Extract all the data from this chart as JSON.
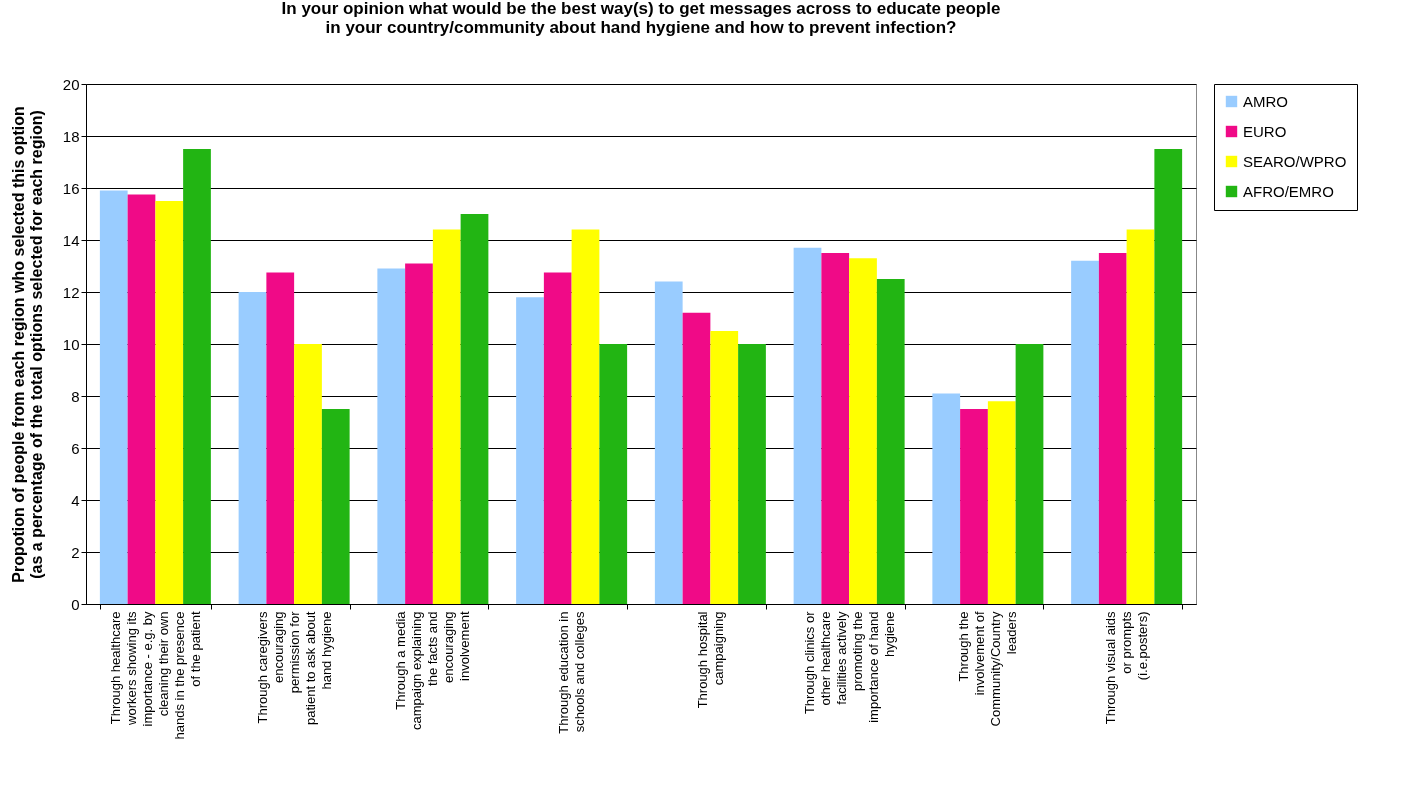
{
  "chart_data": {
    "type": "bar",
    "title": [
      "In your opinion what would be the best way(s) to get messages across to educate people",
      "in your country/community about hand hygiene and how to prevent infection?"
    ],
    "ylabel": [
      "Propotion of people from each region who selected this option",
      "(as a percentage of the total options selected for each region)"
    ],
    "categories": [
      "Through healthcare workers showing its importance - e.g. by cleaning their own hands in the presence of the patient",
      "Through caregivers encouraging permission for patient to ask about hand hygiene",
      "Through a media campaign explaining the facts and encouraging involvement",
      "Through education in schools and colleges",
      "Through hospital campaigning",
      "Through clinics or other healthcare facilities actively promoting the importance of hand hygiene",
      "Through the involvement of Community/Country leaders",
      "Through visual aids or prompts (i.e.posters)"
    ],
    "series": [
      {
        "name": "AMRO",
        "color": "#99ccff",
        "values": [
          15.9,
          12.0,
          12.9,
          11.8,
          12.4,
          13.7,
          8.1,
          13.2
        ]
      },
      {
        "name": "EURO",
        "color": "#f00a87",
        "values": [
          15.75,
          12.75,
          13.1,
          12.75,
          11.2,
          13.5,
          7.5,
          13.5
        ]
      },
      {
        "name": "SEARO/WPRO",
        "color": "#ffff00",
        "values": [
          15.5,
          10.0,
          14.4,
          14.4,
          10.5,
          13.3,
          7.8,
          14.4
        ]
      },
      {
        "name": "AFRO/EMRO",
        "color": "#22b513",
        "values": [
          17.5,
          7.5,
          15.0,
          10.0,
          10.0,
          12.5,
          10.0,
          17.5
        ]
      }
    ],
    "ylim": [
      0,
      20
    ],
    "yticks": [
      0,
      2,
      4,
      6,
      8,
      10,
      12,
      14,
      16,
      18,
      20
    ],
    "grid": "y",
    "legend": "right"
  }
}
